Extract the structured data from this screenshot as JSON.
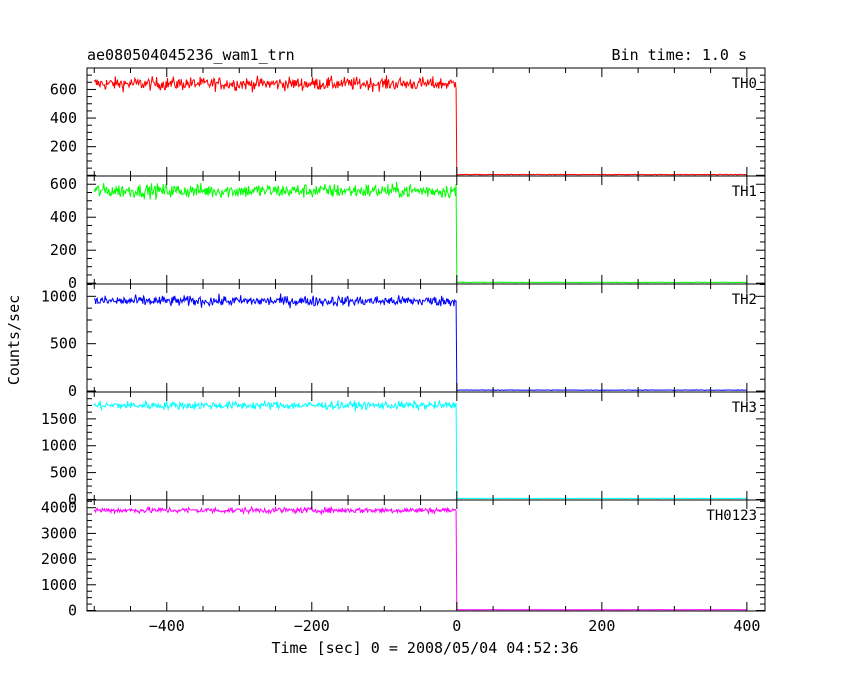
{
  "header": {
    "title": "ae080504045236_wam1_trn",
    "bin_time": "Bin time: 1.0 s"
  },
  "chart_data": {
    "type": "line",
    "title": "ae080504045236_wam1_trn",
    "subtitle": "Bin time: 1.0 s",
    "xlabel": "Time [sec] 0 = 2008/05/04 04:52:36",
    "ylabel": "Counts/sec",
    "xlim": [
      -510,
      425
    ],
    "x_ticks": [
      -400,
      -200,
      0,
      200,
      400
    ],
    "x_tick_labels": [
      "−400",
      "−200",
      "0",
      "200",
      "400"
    ],
    "step_time": 0,
    "x_start": -500,
    "x_end": 400,
    "grid": false,
    "panels": [
      {
        "name": "TH0",
        "color": "#ff0000",
        "ylim": [
          -5,
          750
        ],
        "ticks": [
          200,
          400,
          600
        ],
        "tick_labels": [
          "200",
          "400",
          "600"
        ],
        "zero_tick": false,
        "pre_level": 640,
        "post_level": 5
      },
      {
        "name": "TH1",
        "color": "#00ff00",
        "ylim": [
          -5,
          650
        ],
        "ticks": [
          0,
          200,
          400,
          600
        ],
        "tick_labels": [
          "0",
          "200",
          "400",
          "600"
        ],
        "zero_tick": true,
        "pre_level": 560,
        "post_level": 5
      },
      {
        "name": "TH2",
        "color": "#0000ff",
        "ylim": [
          -10,
          1130
        ],
        "ticks": [
          0,
          500,
          1000
        ],
        "tick_labels": [
          "0",
          "500",
          "1000"
        ],
        "zero_tick": true,
        "pre_level": 950,
        "post_level": 10
      },
      {
        "name": "TH3",
        "color": "#00ffff",
        "ylim": [
          -10,
          2000
        ],
        "ticks": [
          0,
          500,
          1000,
          1500
        ],
        "tick_labels": [
          "0",
          "500",
          "1000",
          "1500"
        ],
        "zero_tick": true,
        "pre_level": 1750,
        "post_level": 20
      },
      {
        "name": "TH0123",
        "color": "#ff00ff",
        "ylim": [
          -20,
          4300
        ],
        "ticks": [
          0,
          1000,
          2000,
          3000,
          4000
        ],
        "tick_labels": [
          "0",
          "1000",
          "2000",
          "3000",
          "4000"
        ],
        "zero_tick": true,
        "pre_level": 3900,
        "post_level": 30
      }
    ]
  }
}
